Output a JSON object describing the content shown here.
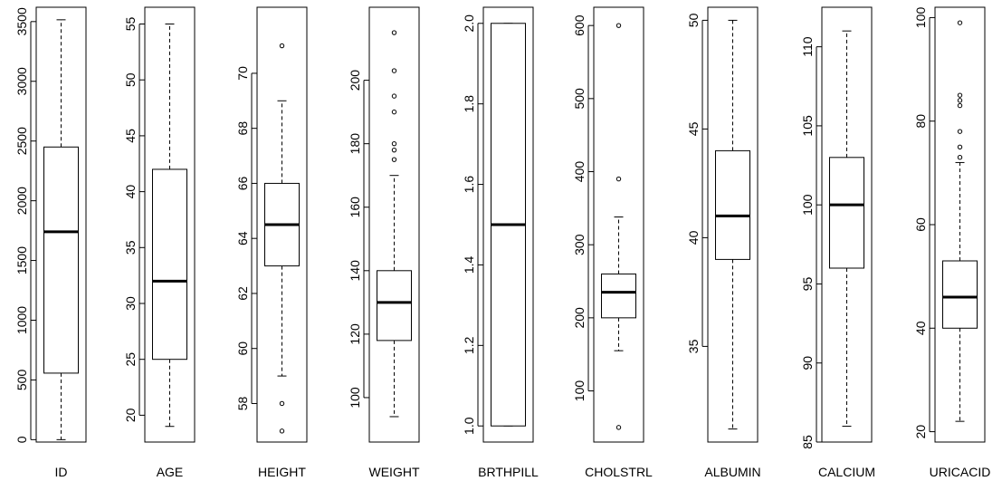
{
  "chart_data": [
    {
      "type": "box",
      "xlabel": "ID",
      "ylim": [
        -20,
        3620
      ],
      "yticks": [
        0,
        500,
        1000,
        1500,
        2000,
        2500,
        3000,
        3500
      ],
      "box": {
        "lower_whisker": 0,
        "q1": 557,
        "median": 1740,
        "q3": 2450,
        "upper_whisker": 3515
      },
      "outliers": []
    },
    {
      "type": "box",
      "xlabel": "AGE",
      "ylim": [
        17.6,
        56.5
      ],
      "yticks": [
        20,
        25,
        30,
        35,
        40,
        45,
        50,
        55
      ],
      "box": {
        "lower_whisker": 19,
        "q1": 25,
        "median": 32,
        "q3": 42,
        "upper_whisker": 55
      },
      "outliers": []
    },
    {
      "type": "box",
      "xlabel": "HEIGHT",
      "ylim": [
        56.6,
        72.4
      ],
      "yticks": [
        58,
        60,
        62,
        64,
        66,
        68,
        70
      ],
      "box": {
        "lower_whisker": 59,
        "q1": 63,
        "median": 64.5,
        "q3": 66,
        "upper_whisker": 69
      },
      "outliers": [
        57,
        58,
        71
      ]
    },
    {
      "type": "box",
      "xlabel": "WEIGHT",
      "ylim": [
        86,
        223
      ],
      "yticks": [
        100,
        120,
        140,
        160,
        180,
        200
      ],
      "box": {
        "lower_whisker": 94,
        "q1": 118,
        "median": 130,
        "q3": 140,
        "upper_whisker": 170
      },
      "outliers": [
        175,
        178,
        180,
        190,
        195,
        203,
        215
      ]
    },
    {
      "type": "box",
      "xlabel": "BRTHPILL",
      "ylim": [
        0.96,
        2.04
      ],
      "yticks": [
        1.0,
        1.2,
        1.4,
        1.6,
        1.8,
        2.0
      ],
      "box": {
        "lower_whisker": 1,
        "q1": 1,
        "median": 1.5,
        "q3": 2,
        "upper_whisker": 2
      },
      "outliers": []
    },
    {
      "type": "box",
      "xlabel": "CHOLSTRL",
      "ylim": [
        30,
        625
      ],
      "yticks": [
        100,
        200,
        300,
        400,
        500,
        600
      ],
      "box": {
        "lower_whisker": 155,
        "q1": 200,
        "median": 235,
        "q3": 260,
        "upper_whisker": 338
      },
      "outliers": [
        50,
        390,
        600
      ]
    },
    {
      "type": "box",
      "xlabel": "ALBUMIN",
      "ylim": [
        30.6,
        50.6
      ],
      "yticks": [
        35,
        40,
        45,
        50
      ],
      "box": {
        "lower_whisker": 31.2,
        "q1": 39,
        "median": 41,
        "q3": 44,
        "upper_whisker": 50
      },
      "outliers": []
    },
    {
      "type": "box",
      "xlabel": "CALCIUM",
      "ylim": [
        85,
        112.5
      ],
      "yticks": [
        85,
        90,
        95,
        100,
        105,
        110
      ],
      "box": {
        "lower_whisker": 86,
        "q1": 96,
        "median": 100,
        "q3": 103,
        "upper_whisker": 111
      },
      "outliers": []
    },
    {
      "type": "box",
      "xlabel": "URICACID",
      "ylim": [
        18,
        102
      ],
      "yticks": [
        20,
        40,
        60,
        80,
        100
      ],
      "box": {
        "lower_whisker": 22,
        "q1": 40,
        "median": 46,
        "q3": 53,
        "upper_whisker": 72
      },
      "outliers": [
        73,
        75,
        78,
        83,
        84,
        85,
        99
      ]
    }
  ]
}
